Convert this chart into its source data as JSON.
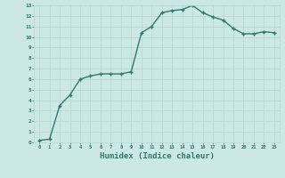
{
  "x": [
    0,
    1,
    2,
    3,
    4,
    5,
    6,
    7,
    8,
    9,
    10,
    11,
    12,
    13,
    14,
    15,
    16,
    17,
    18,
    19,
    20,
    21,
    22,
    23
  ],
  "y": [
    0.2,
    0.3,
    3.5,
    4.5,
    6.0,
    6.3,
    6.5,
    6.5,
    6.5,
    6.7,
    10.4,
    11.0,
    12.3,
    12.5,
    12.6,
    13.0,
    12.3,
    11.9,
    11.6,
    10.8,
    10.3,
    10.3,
    10.5,
    10.4
  ],
  "xlabel": "Humidex (Indice chaleur)",
  "xlim": [
    0,
    23
  ],
  "ylim": [
    0,
    13
  ],
  "line_color": "#2d7a6e",
  "bg_color": "#cce8e4",
  "grid_color": "#b8d8d4",
  "tick_color": "#2d7a6e",
  "label_color": "#2d7a6e",
  "marker": "+",
  "marker_size": 3.5,
  "line_width": 1.0,
  "x_tick_labels": [
    "0",
    "1",
    "2",
    "3",
    "4",
    "5",
    "6",
    "7",
    "8",
    "9",
    "10",
    "11",
    "12",
    "13",
    "14",
    "15",
    "16",
    "17",
    "18",
    "19",
    "20",
    "21",
    "22",
    "23"
  ],
  "y_tick_labels": [
    "0",
    "1",
    "2",
    "3",
    "4",
    "5",
    "6",
    "7",
    "8",
    "9",
    "10",
    "11",
    "12",
    "13"
  ]
}
